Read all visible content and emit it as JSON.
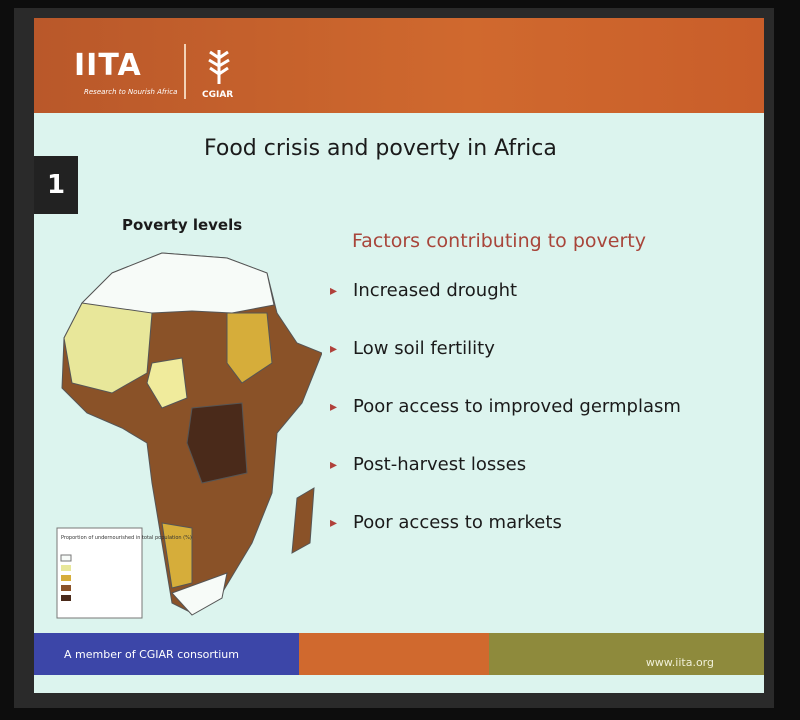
{
  "header": {
    "logo": "IITA",
    "tagline": "Research to Nourish Africa",
    "partner": "CGIAR"
  },
  "slide_number": "1",
  "title": "Food crisis and poverty in Africa",
  "map": {
    "title": "Poverty levels",
    "legend_title": "Proportion of undernourished in total population (%)"
  },
  "factors": {
    "heading": "Factors contributing to poverty",
    "items": [
      "Increased drought",
      "Low soil fertility",
      "Poor access to improved germplasm",
      "Post-harvest losses",
      "Poor access to markets"
    ]
  },
  "footer": {
    "member": "A member of CGIAR consortium",
    "url": "www.iita.org"
  }
}
